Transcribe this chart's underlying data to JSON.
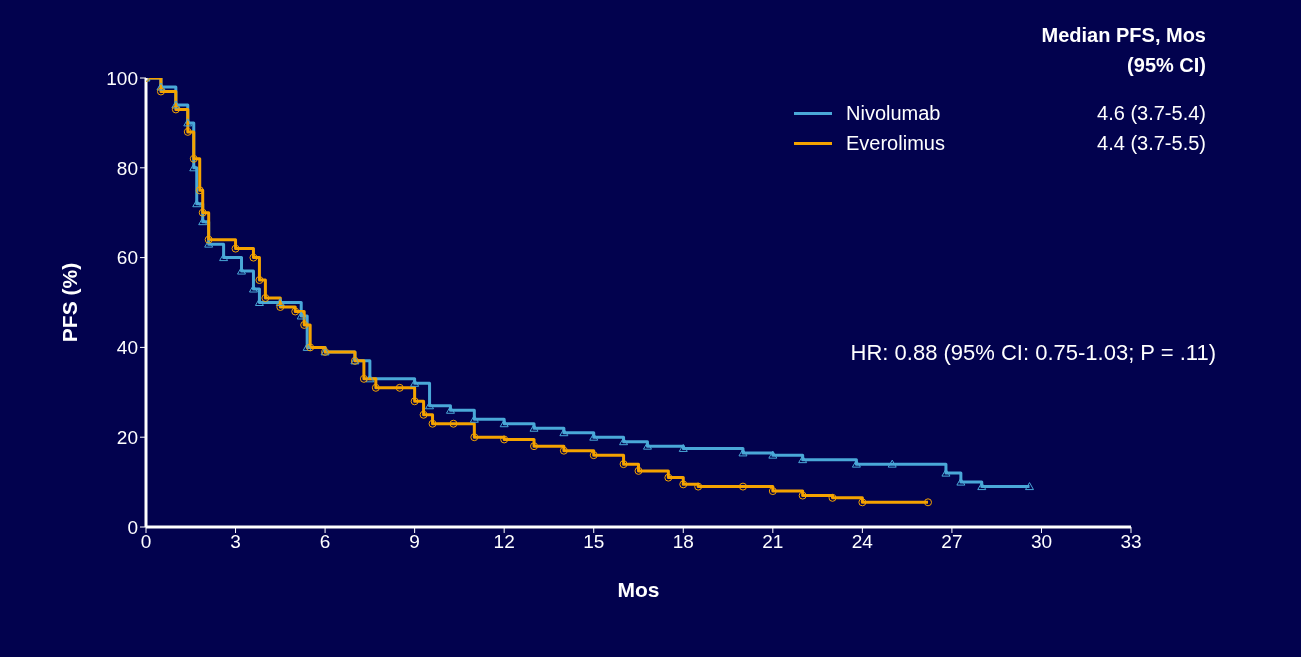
{
  "chart_data": {
    "type": "step",
    "xlabel": "Mos",
    "ylabel": "PFS (%)",
    "xlim": [
      0,
      33
    ],
    "xticks": [
      0,
      3,
      6,
      9,
      12,
      15,
      18,
      21,
      24,
      27,
      30,
      33
    ],
    "ylim": [
      0,
      100
    ],
    "yticks": [
      0,
      20,
      40,
      60,
      80,
      100
    ],
    "grid": false,
    "legend": "top right",
    "legend_title": "Median PFS, Mos (95% CI)",
    "annotations": [
      "4.6 (3.7-5.4)",
      "4.4 (3.7-5.5)",
      "HR: 0.88 (95% CI: 0.75-1.03; P = .11)"
    ],
    "series": [
      {
        "name": "Nivolumab",
        "color": "#4aa8d8",
        "marker": "triangle",
        "x": [
          0,
          0.5,
          1,
          1.4,
          1.6,
          1.7,
          1.9,
          2.1,
          2.6,
          3.2,
          3.6,
          3.8,
          4.5,
          5.2,
          5.4,
          6,
          7,
          7.5,
          9,
          9.5,
          10.2,
          11,
          12,
          13,
          14,
          15,
          16,
          16.8,
          18,
          20,
          21,
          22,
          23.8,
          25,
          26.8,
          27.3,
          28,
          29.6
        ],
        "values": [
          100,
          98,
          94,
          90,
          80,
          72,
          68,
          63,
          60,
          57,
          53,
          50,
          50,
          47,
          40,
          39,
          37,
          33,
          32,
          27,
          26,
          24,
          23,
          22,
          21,
          20,
          19,
          18,
          17.5,
          16.5,
          16,
          15,
          14,
          14,
          12,
          10,
          9,
          9
        ]
      },
      {
        "name": "Everolimus",
        "color": "#f5a300",
        "marker": "circle",
        "x": [
          0,
          0.5,
          1,
          1.4,
          1.6,
          1.8,
          1.9,
          2.1,
          3,
          3.6,
          3.8,
          4,
          4.5,
          5,
          5.3,
          5.5,
          6,
          7,
          7.3,
          7.7,
          8.5,
          9,
          9.3,
          9.6,
          10.3,
          11,
          12,
          13,
          14,
          15,
          16,
          16.5,
          17.5,
          18,
          18.5,
          20,
          21,
          22,
          23,
          24,
          26.2
        ],
        "values": [
          100,
          97,
          93,
          88,
          82,
          75,
          70,
          64,
          62,
          60,
          55,
          51,
          49,
          48,
          45,
          40,
          39,
          37,
          33,
          31,
          31,
          28,
          25,
          23,
          23,
          20,
          19.5,
          18,
          17,
          16,
          14,
          12.5,
          11,
          9.5,
          9,
          9,
          8,
          7,
          6.5,
          5.5,
          5.5
        ]
      }
    ]
  }
}
